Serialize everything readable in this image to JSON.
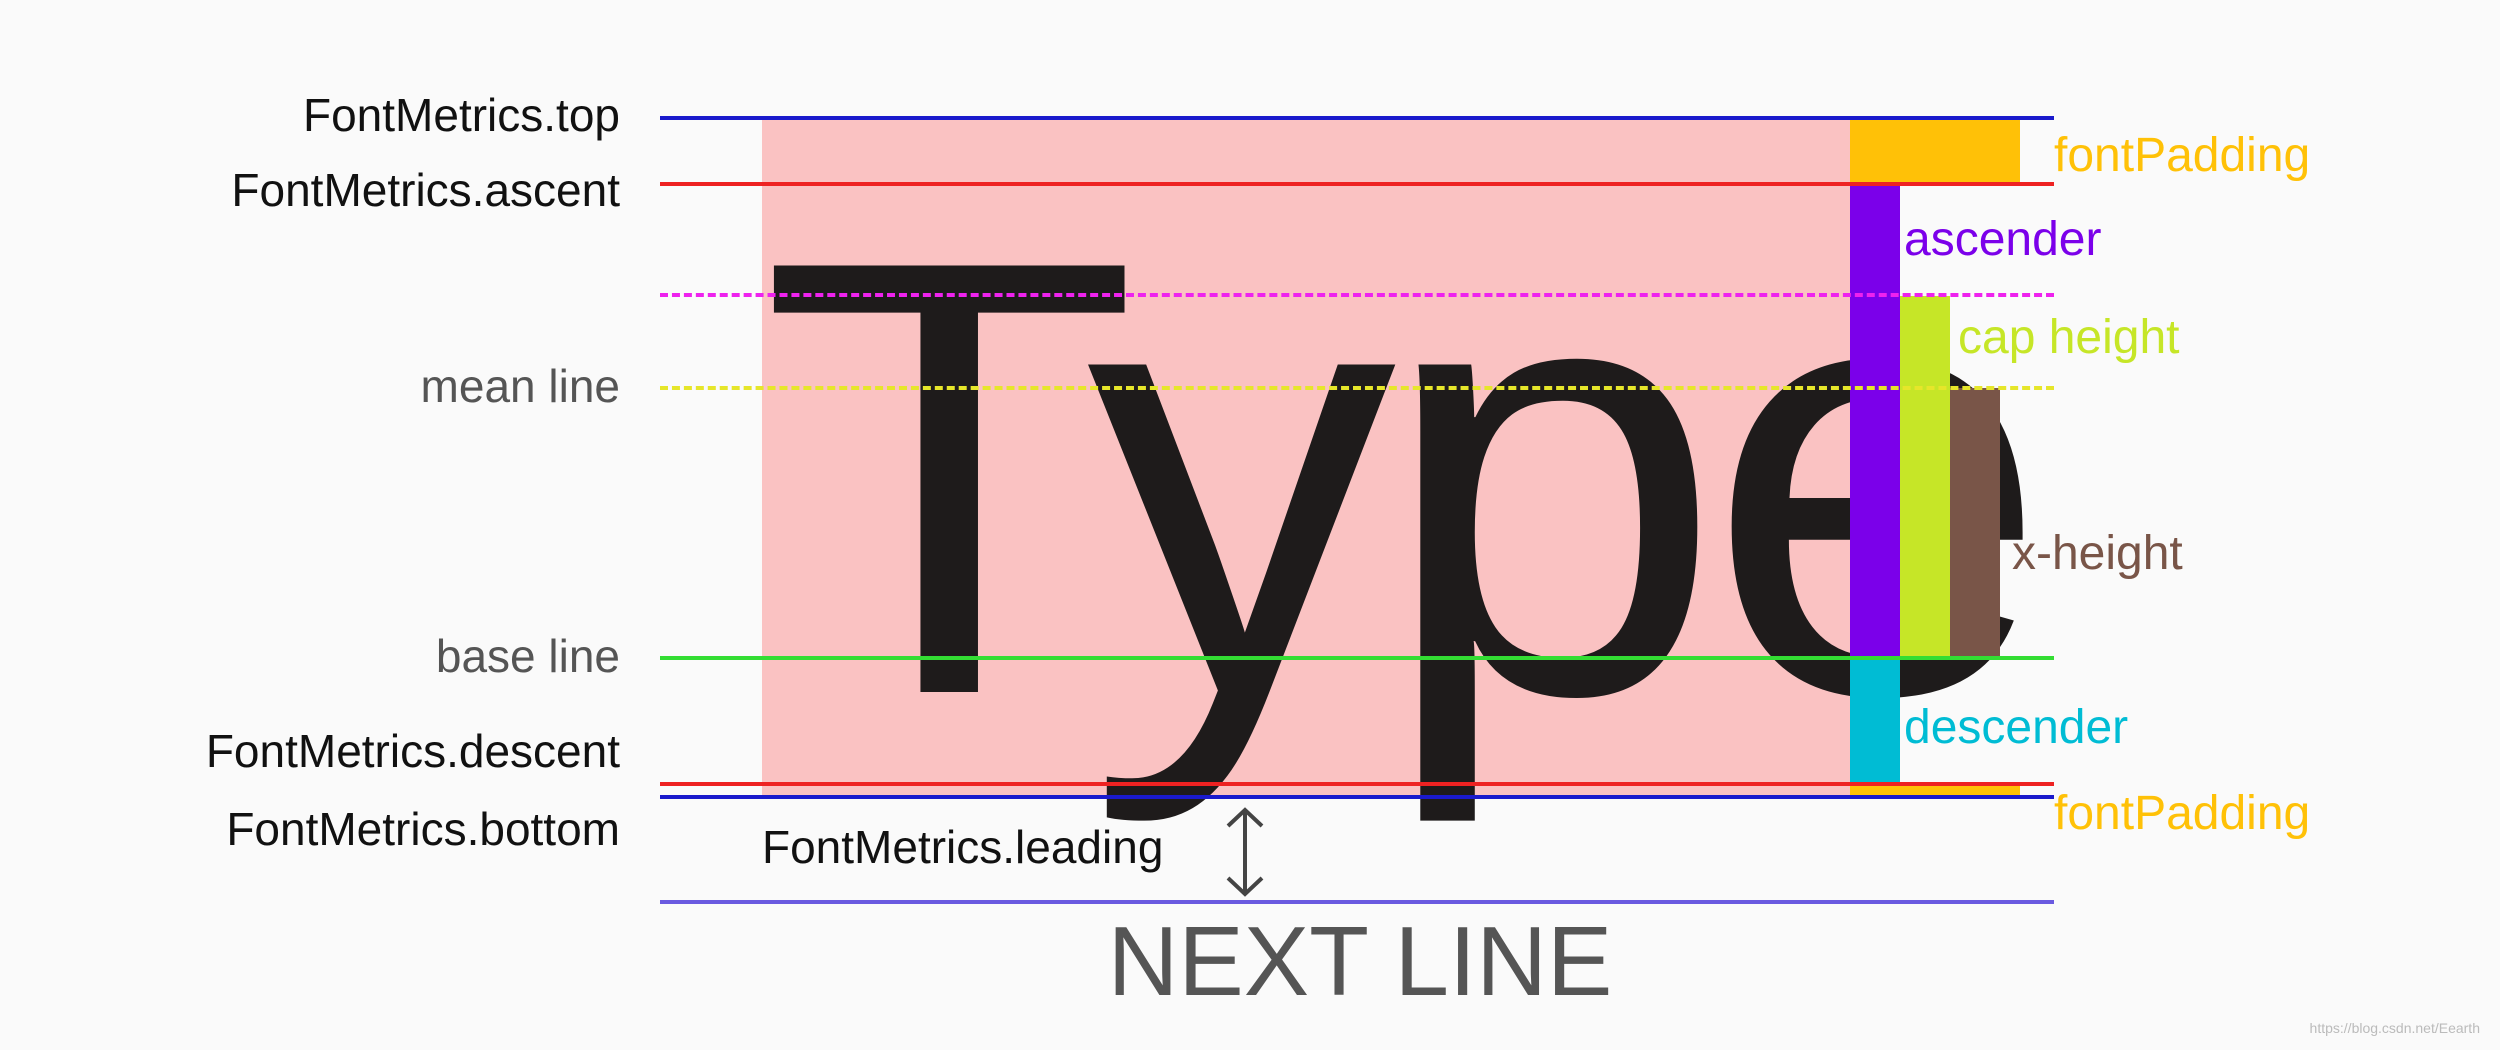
{
  "left_labels": {
    "top": "FontMetrics.top",
    "ascent": "FontMetrics.ascent",
    "mean_line": "mean line",
    "base_line": "base line",
    "descent": "FontMetrics.descent",
    "bottom": "FontMetrics.bottom"
  },
  "right_labels": {
    "font_padding_top": "fontPadding",
    "ascender": "ascender",
    "cap_height": "cap height",
    "x_height": "x-height",
    "descender": "descender",
    "font_padding_bottom": "fontPadding"
  },
  "sample_text": "Type",
  "leading_label": "FontMetrics.leading",
  "next_line": "NEXT LINE",
  "watermark": "https://blog.csdn.net/Eearth",
  "colors": {
    "top_line": "#1a1acc",
    "ascent_line": "#ee2222",
    "cap_line": "#ee22ee",
    "mean_line": "#e6e62a",
    "base_line": "#33dd33",
    "descent_line": "#ee2222",
    "bottom_line": "#1a1acc",
    "next_line": "#6a5ae0",
    "highlight": "#fac2c2",
    "font_padding": "#ffc107",
    "ascender": "#7b00ea",
    "cap_height": "#c6e627",
    "x_height": "#795548",
    "descender": "#00bcd4"
  }
}
